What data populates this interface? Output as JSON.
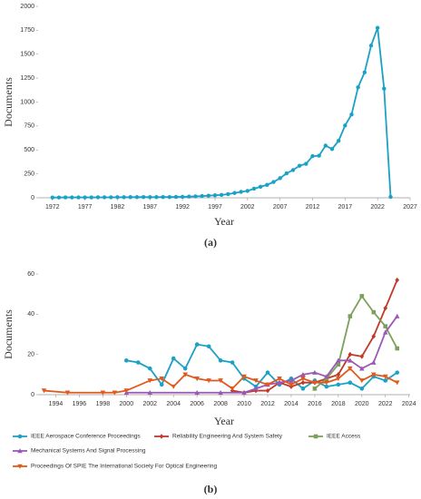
{
  "chart_data": [
    {
      "type": "line",
      "caption": "(a)",
      "x_label": "Year",
      "y_label": "Documents",
      "xlim": [
        1969.8,
        2027
      ],
      "xticks": [
        1972,
        1977,
        1982,
        1987,
        1992,
        1997,
        2002,
        2007,
        2012,
        2017,
        2022,
        2027
      ],
      "ylim": [
        0,
        2000
      ],
      "yticks": [
        0,
        250,
        500,
        750,
        1000,
        1250,
        1500,
        1750,
        2000
      ],
      "series": [
        {
          "name": "Documents",
          "color": "#1ba1c5",
          "marker": "circle",
          "x": [
            1972,
            1973,
            1974,
            1975,
            1976,
            1977,
            1978,
            1979,
            1980,
            1981,
            1982,
            1983,
            1984,
            1985,
            1986,
            1987,
            1988,
            1989,
            1990,
            1991,
            1992,
            1993,
            1994,
            1995,
            1996,
            1997,
            1998,
            1999,
            2000,
            2001,
            2002,
            2003,
            2004,
            2005,
            2006,
            2007,
            2008,
            2009,
            2010,
            2011,
            2012,
            2013,
            2014,
            2015,
            2016,
            2017,
            2018,
            2019,
            2020,
            2021,
            2022,
            2023,
            2024
          ],
          "values": [
            3,
            3,
            4,
            4,
            4,
            4,
            4,
            5,
            5,
            5,
            6,
            6,
            7,
            7,
            8,
            7,
            7,
            8,
            8,
            9,
            10,
            12,
            15,
            18,
            22,
            26,
            30,
            38,
            50,
            62,
            72,
            95,
            115,
            135,
            165,
            205,
            255,
            290,
            335,
            355,
            435,
            440,
            545,
            510,
            595,
            755,
            870,
            1155,
            1310,
            1590,
            1775,
            1140,
            10
          ]
        }
      ]
    },
    {
      "type": "line",
      "caption": "(b)",
      "x_label": "Year",
      "y_label": "Documents",
      "xlim": [
        1992.5,
        2024.1
      ],
      "xticks": [
        1994,
        1996,
        1998,
        2000,
        2002,
        2004,
        2006,
        2008,
        2010,
        2012,
        2014,
        2016,
        2018,
        2020,
        2022,
        2024
      ],
      "ylim": [
        0,
        60
      ],
      "yticks": [
        0,
        20,
        40,
        60
      ],
      "series": [
        {
          "name": "IEEE Aerospace Conference Proceedings",
          "color": "#1ba1c5",
          "marker": "circle",
          "x": [
            2000,
            2001,
            2002,
            2003,
            2004,
            2005,
            2006,
            2007,
            2008,
            2009,
            2010,
            2011,
            2012,
            2013,
            2014,
            2015,
            2016,
            2017,
            2018,
            2019,
            2020,
            2021,
            2022,
            2023
          ],
          "values": [
            17,
            16,
            13,
            5,
            18,
            13,
            25,
            24,
            17,
            16,
            8,
            4,
            11,
            5,
            8,
            3,
            7,
            4,
            5,
            6,
            3,
            9,
            7,
            11
          ]
        },
        {
          "name": "Reliability Engineering And System Safety",
          "color": "#c0392b",
          "marker": "diamond",
          "x": [
            2009,
            2010,
            2011,
            2012,
            2013,
            2014,
            2015,
            2016,
            2017,
            2018,
            2019,
            2020,
            2021,
            2022,
            2023
          ],
          "values": [
            2,
            1,
            2,
            2,
            6,
            4,
            6,
            6,
            8,
            10,
            20,
            19,
            29,
            43,
            57
          ]
        },
        {
          "name": "IEEE Access",
          "color": "#7ba05b",
          "marker": "square",
          "x": [
            2016,
            2017,
            2018,
            2019,
            2020,
            2021,
            2022,
            2023
          ],
          "values": [
            3,
            8,
            15,
            39,
            49,
            41,
            34,
            23
          ]
        },
        {
          "name": "Mechanical Systems And Signal Processing",
          "color": "#9b59b6",
          "marker": "triangle",
          "x": [
            2000,
            2002,
            2006,
            2008,
            2010,
            2011,
            2012,
            2013,
            2014,
            2015,
            2016,
            2017,
            2018,
            2019,
            2020,
            2021,
            2022,
            2023
          ],
          "values": [
            1,
            1,
            1,
            1,
            1,
            3,
            5,
            6,
            7,
            10,
            11,
            9,
            17,
            17,
            13,
            16,
            31,
            39
          ]
        },
        {
          "name": "Proceedings Of SPIE The International Society For Optical Engineering",
          "color": "#e05a1e",
          "marker": "triangle-down",
          "x": [
            1993,
            1995,
            1998,
            1999,
            2000,
            2002,
            2003,
            2004,
            2005,
            2006,
            2007,
            2008,
            2009,
            2010,
            2011,
            2012,
            2013,
            2014,
            2015,
            2016,
            2017,
            2018,
            2019,
            2020,
            2021,
            2022,
            2023
          ],
          "values": [
            2,
            1,
            1,
            1,
            2,
            7,
            8,
            4,
            10,
            8,
            7,
            7,
            3,
            9,
            7,
            5,
            8,
            5,
            8,
            6,
            6,
            8,
            13,
            7,
            10,
            9,
            6
          ]
        }
      ]
    }
  ]
}
